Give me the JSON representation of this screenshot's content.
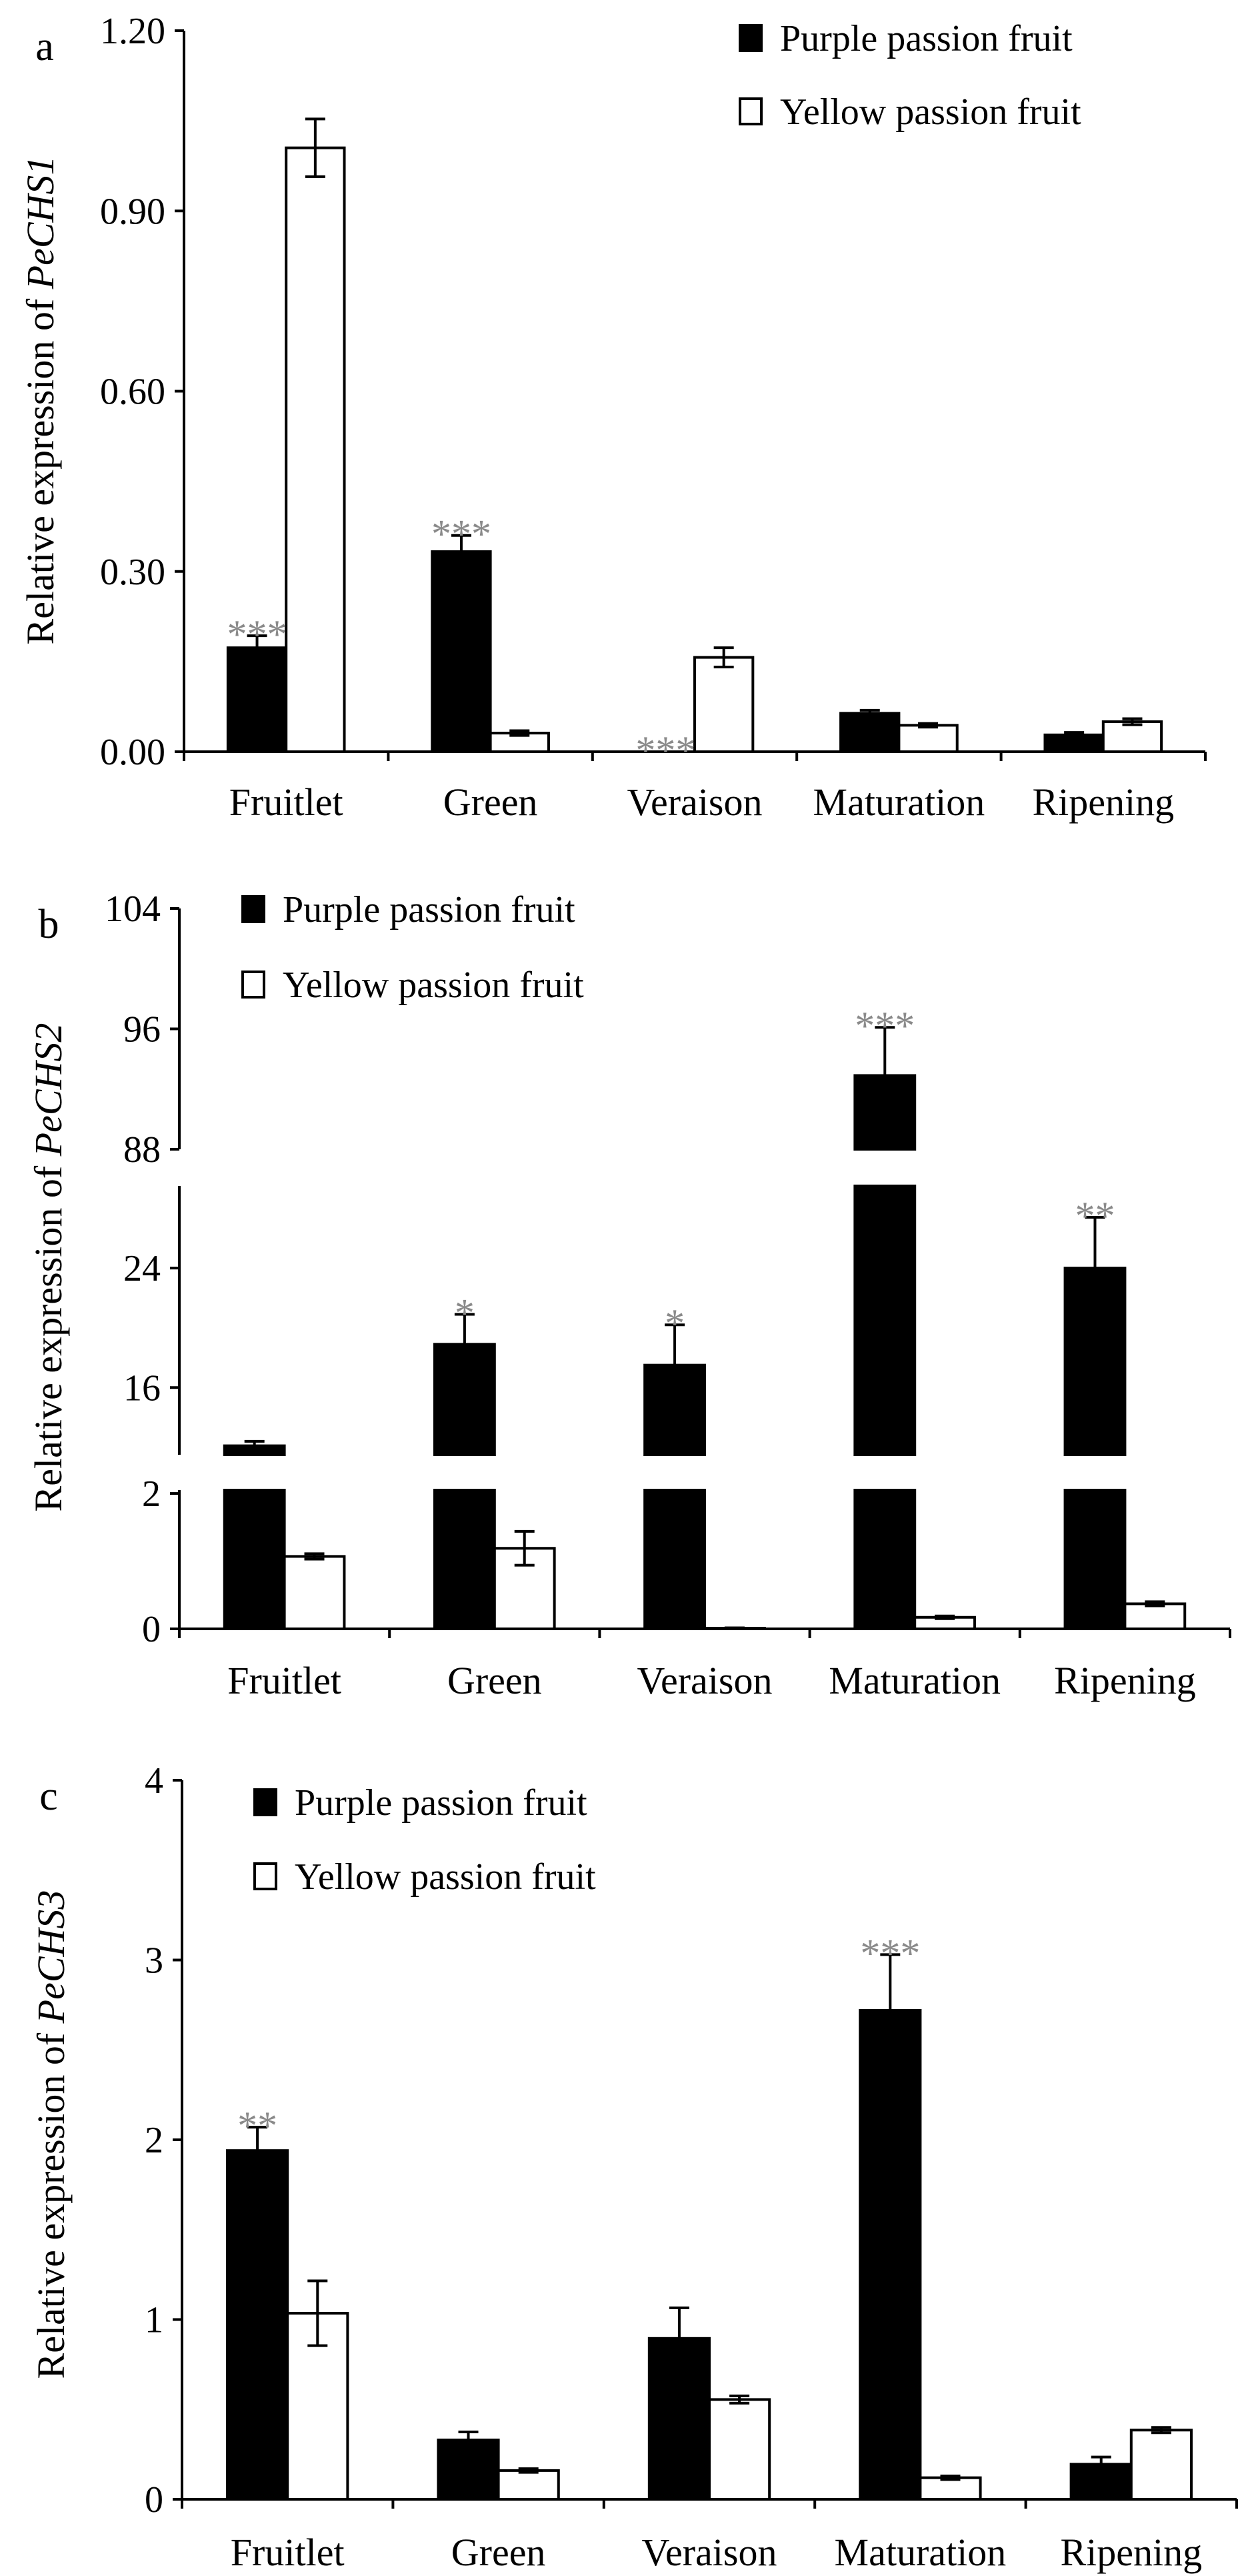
{
  "chart_data": [
    {
      "type": "bar",
      "panel_label": "a",
      "ylabel_prefix": "Relative expression of ",
      "ylabel_gene": "PeCHS1",
      "categories": [
        "Fruitlet",
        "Green",
        "Veraison",
        "Maturation",
        "Ripening"
      ],
      "y_segments": [
        {
          "range": [
            0,
            1.2
          ],
          "ticks": [
            0,
            0.3,
            0.6,
            0.9,
            1.2
          ],
          "tick_labels": [
            "0.00",
            "0.30",
            "0.60",
            "0.90",
            "1.20"
          ]
        }
      ],
      "legend_placement": "top-right",
      "series": [
        {
          "name": "Purple passion fruit",
          "color": "#000000",
          "values": [
            0.173,
            0.333,
            0,
            0.064,
            0.028
          ],
          "errors": [
            0.02,
            0.027,
            0,
            0.005,
            0.004
          ]
        },
        {
          "name": "Yellow passion fruit",
          "color": "#ffffff",
          "values": [
            1.005,
            0.031,
            0.157,
            0.044,
            0.05
          ],
          "errors": [
            0.048,
            0.004,
            0.016,
            0.003,
            0.005
          ]
        }
      ],
      "significance": [
        "***",
        "***",
        "***",
        "",
        ""
      ]
    },
    {
      "type": "bar",
      "panel_label": "b",
      "ylabel_prefix": "Relative expression of ",
      "ylabel_gene": "PeCHS2",
      "categories": [
        "Fruitlet",
        "Green",
        "Veraison",
        "Maturation",
        "Ripening"
      ],
      "y_segments": [
        {
          "range": [
            0,
            2.05
          ],
          "ticks": [
            0,
            2
          ],
          "tick_labels": [
            "0",
            "2"
          ]
        },
        {
          "range": [
            11.5,
            29.5
          ],
          "ticks": [
            16,
            24
          ],
          "tick_labels": [
            "16",
            "24"
          ]
        },
        {
          "range": [
            88,
            104
          ],
          "ticks": [
            88,
            96,
            104
          ],
          "tick_labels": [
            "88",
            "96",
            "104"
          ]
        }
      ],
      "legend_placement": "top-left",
      "series": [
        {
          "name": "Purple passion fruit",
          "color": "#000000",
          "values": [
            12.1,
            18.9,
            17.5,
            92.9,
            24.0
          ],
          "errors": [
            0.3,
            2.0,
            2.7,
            3.2,
            3.4
          ]
        },
        {
          "name": "Yellow passion fruit",
          "color": "#ffffff",
          "values": [
            1.07,
            1.19,
            0.01,
            0.17,
            0.37
          ],
          "errors": [
            0.04,
            0.25,
            0.005,
            0.02,
            0.03
          ]
        }
      ],
      "significance": [
        "",
        "*",
        "*",
        "***",
        "**"
      ]
    },
    {
      "type": "bar",
      "panel_label": "c",
      "ylabel_prefix": "Relative expression of ",
      "ylabel_gene": "PeCHS3",
      "categories": [
        "Fruitlet",
        "Green",
        "Veraison",
        "Maturation",
        "Ripening"
      ],
      "y_segments": [
        {
          "range": [
            0,
            4
          ],
          "ticks": [
            0,
            1,
            2,
            3,
            4
          ],
          "tick_labels": [
            "0",
            "1",
            "2",
            "3",
            "4"
          ]
        }
      ],
      "legend_placement": "top-left",
      "series": [
        {
          "name": "Purple passion fruit",
          "color": "#000000",
          "values": [
            1.94,
            0.33,
            0.895,
            2.72,
            0.195
          ],
          "errors": [
            0.13,
            0.045,
            0.17,
            0.31,
            0.04
          ]
        },
        {
          "name": "Yellow passion fruit",
          "color": "#ffffff",
          "values": [
            1.035,
            0.16,
            0.555,
            0.12,
            0.385
          ],
          "errors": [
            0.18,
            0.01,
            0.02,
            0.01,
            0.015
          ]
        }
      ],
      "significance": [
        "**",
        "",
        "",
        "***",
        ""
      ]
    }
  ]
}
